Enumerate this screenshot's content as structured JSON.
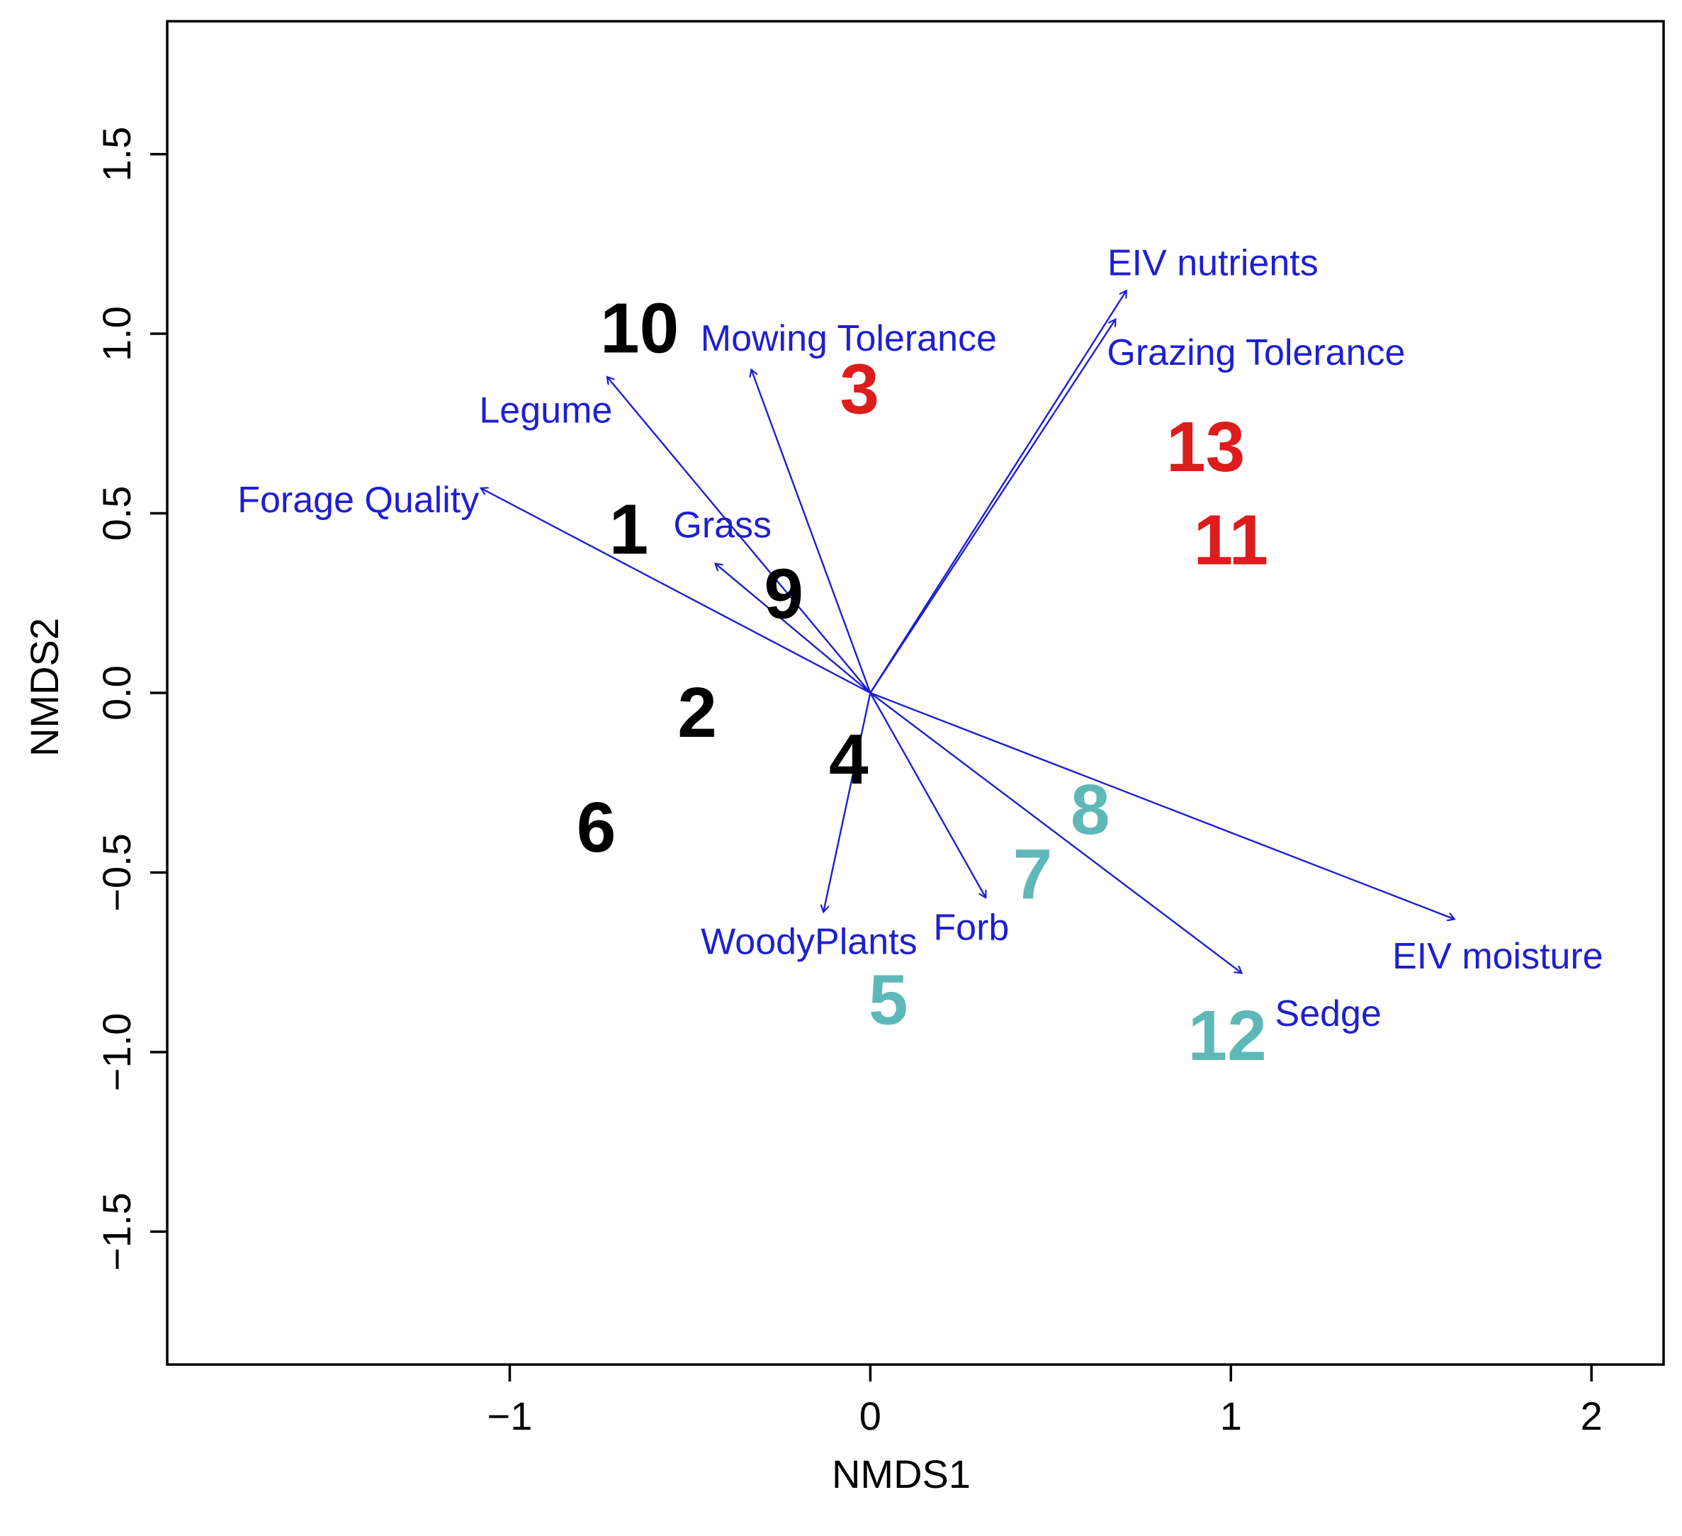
{
  "chart_data": {
    "type": "scatter",
    "subtype": "NMDS ordination biplot with fitted vectors",
    "title": "",
    "xlabel": "NMDS1",
    "ylabel": "NMDS2",
    "xlim": [
      -1.95,
      2.2
    ],
    "ylim": [
      -1.87,
      1.87
    ],
    "xticks": [
      -1,
      0,
      1,
      2
    ],
    "yticks": [
      -1.5,
      -1.0,
      -0.5,
      0.0,
      0.5,
      1.0,
      1.5
    ],
    "xtick_labels": [
      "−1",
      "0",
      "1",
      "2"
    ],
    "ytick_labels": [
      "−1.5",
      "−1.0",
      "−0.5",
      "0.0",
      "0.5",
      "1.0",
      "1.5"
    ],
    "grid": false,
    "colors": {
      "group_black": "#000000",
      "group_red": "#dd1c1c",
      "group_teal": "#5fb8b8",
      "vector": "#1f1fd0"
    },
    "sites": [
      {
        "label": "1",
        "x": -0.67,
        "y": 0.44,
        "group": "group_black"
      },
      {
        "label": "2",
        "x": -0.48,
        "y": -0.07,
        "group": "group_black"
      },
      {
        "label": "3",
        "x": -0.03,
        "y": 0.83,
        "group": "group_red"
      },
      {
        "label": "4",
        "x": -0.06,
        "y": -0.2,
        "group": "group_black"
      },
      {
        "label": "5",
        "x": 0.05,
        "y": -0.87,
        "group": "group_teal"
      },
      {
        "label": "6",
        "x": -0.76,
        "y": -0.39,
        "group": "group_black"
      },
      {
        "label": "7",
        "x": 0.45,
        "y": -0.52,
        "group": "group_teal"
      },
      {
        "label": "8",
        "x": 0.61,
        "y": -0.34,
        "group": "group_teal"
      },
      {
        "label": "9",
        "x": -0.24,
        "y": 0.26,
        "group": "group_black"
      },
      {
        "label": "10",
        "x": -0.64,
        "y": 1.0,
        "group": "group_black"
      },
      {
        "label": "11",
        "x": 1.0,
        "y": 0.41,
        "group": "group_red"
      },
      {
        "label": "12",
        "x": 0.99,
        "y": -0.97,
        "group": "group_teal"
      },
      {
        "label": "13",
        "x": 0.93,
        "y": 0.67,
        "group": "group_red"
      }
    ],
    "vectors": [
      {
        "name": "Forage Quality",
        "x": -1.08,
        "y": 0.57,
        "lx": -1.42,
        "ly": 0.53
      },
      {
        "name": "Legume",
        "x": -0.73,
        "y": 0.88,
        "lx": -0.9,
        "ly": 0.78
      },
      {
        "name": "Mowing Tolerance",
        "x": -0.33,
        "y": 0.9,
        "lx": -0.06,
        "ly": 0.98
      },
      {
        "name": "Grass",
        "x": -0.43,
        "y": 0.36,
        "lx": -0.41,
        "ly": 0.46
      },
      {
        "name": "EIV nutrients",
        "x": 0.71,
        "y": 1.12,
        "lx": 0.95,
        "ly": 1.19
      },
      {
        "name": "Grazing Tolerance",
        "x": 0.68,
        "y": 1.04,
        "lx": 1.07,
        "ly": 0.94
      },
      {
        "name": "EIV moisture",
        "x": 1.62,
        "y": -0.63,
        "lx": 1.74,
        "ly": -0.74
      },
      {
        "name": "Sedge",
        "x": 1.03,
        "y": -0.78,
        "lx": 1.27,
        "ly": -0.9
      },
      {
        "name": "Forb",
        "x": 0.32,
        "y": -0.57,
        "lx": 0.28,
        "ly": -0.66
      },
      {
        "name": "WoodyPlants",
        "x": -0.13,
        "y": -0.61,
        "lx": -0.17,
        "ly": -0.7
      }
    ]
  }
}
